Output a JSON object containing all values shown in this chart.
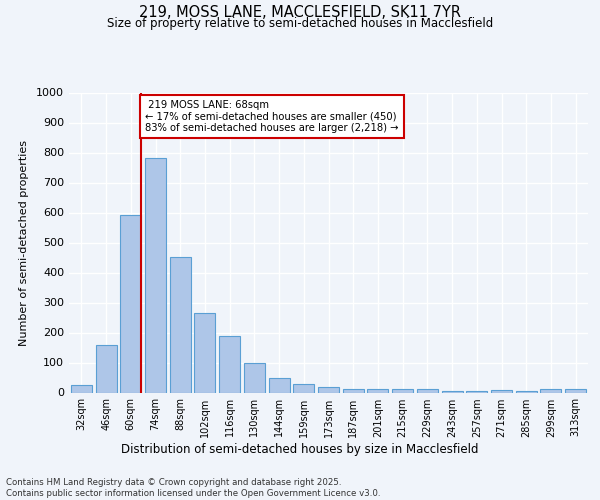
{
  "title1": "219, MOSS LANE, MACCLESFIELD, SK11 7YR",
  "title2": "Size of property relative to semi-detached houses in Macclesfield",
  "xlabel": "Distribution of semi-detached houses by size in Macclesfield",
  "ylabel": "Number of semi-detached properties",
  "categories": [
    "32sqm",
    "46sqm",
    "60sqm",
    "74sqm",
    "88sqm",
    "102sqm",
    "116sqm",
    "130sqm",
    "144sqm",
    "159sqm",
    "173sqm",
    "187sqm",
    "201sqm",
    "215sqm",
    "229sqm",
    "243sqm",
    "257sqm",
    "271sqm",
    "285sqm",
    "299sqm",
    "313sqm"
  ],
  "values": [
    25,
    158,
    593,
    782,
    452,
    265,
    190,
    98,
    47,
    30,
    17,
    13,
    13,
    12,
    13,
    5,
    5,
    10,
    5,
    12,
    12
  ],
  "bar_color": "#aec6e8",
  "bar_edge_color": "#5a9fd4",
  "property_label": "219 MOSS LANE: 68sqm",
  "pct_smaller": 17,
  "pct_larger": 83,
  "n_smaller": 450,
  "n_larger": 2218,
  "annotation_line_color": "#cc0000",
  "ylim": [
    0,
    1000
  ],
  "yticks": [
    0,
    100,
    200,
    300,
    400,
    500,
    600,
    700,
    800,
    900,
    1000
  ],
  "footer": "Contains HM Land Registry data © Crown copyright and database right 2025.\nContains public sector information licensed under the Open Government Licence v3.0.",
  "bg_color": "#f0f4fa",
  "grid_color": "#ffffff"
}
